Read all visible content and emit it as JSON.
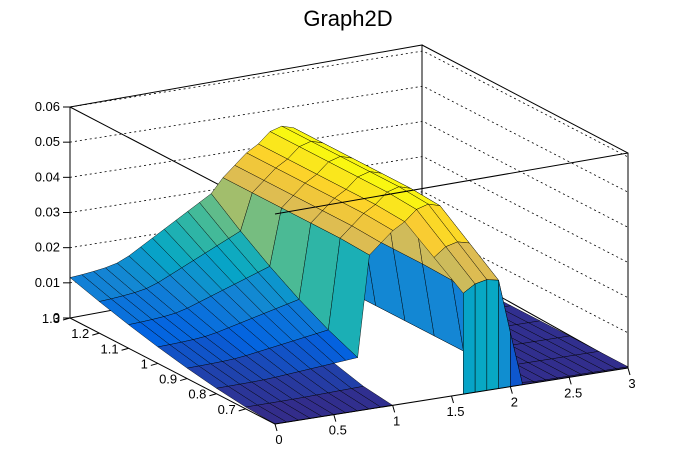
{
  "chart_data": {
    "type": "surface",
    "title": "Graph2D",
    "xlabel": "",
    "ylabel": "",
    "zlabel": "",
    "x_range": [
      0,
      3
    ],
    "y_range": [
      0.6,
      1.3
    ],
    "z_range": [
      0,
      0.06
    ],
    "x_ticks": [
      0,
      0.5,
      1,
      1.5,
      2,
      2.5,
      3
    ],
    "x_tick_labels": [
      "0",
      "0.5",
      "1",
      "1.5",
      "2",
      "2.5",
      "3"
    ],
    "y_ticks": [
      0.7,
      0.8,
      0.9,
      1.0,
      1.1,
      1.2,
      1.3
    ],
    "y_tick_labels": [
      "0.7",
      "0.8",
      "0.9",
      "1",
      "1.1",
      "1.2",
      "1.3"
    ],
    "z_ticks": [
      0,
      0.01,
      0.02,
      0.03,
      0.04,
      0.05,
      0.06
    ],
    "z_tick_labels": [
      "0",
      "0.01",
      "0.02",
      "0.03",
      "0.04",
      "0.05",
      "0.06"
    ],
    "z_grid": true,
    "palette": [
      "#352a87",
      "#0363e1",
      "#1485d4",
      "#06a7c6",
      "#38b99e",
      "#92bf73",
      "#d9ba56",
      "#fcce2e",
      "#f9fb0e"
    ],
    "grid_x": [
      0,
      0.1,
      0.2,
      0.3,
      0.4,
      0.5,
      0.6,
      0.7,
      0.8,
      0.9,
      1.0,
      1.1,
      1.2,
      1.3,
      1.4,
      1.5,
      1.6,
      1.7,
      1.8,
      1.9,
      2.0,
      2.1,
      2.2,
      2.3,
      2.4,
      2.5,
      2.6,
      2.7,
      2.8,
      2.9,
      3.0
    ],
    "grid_y": [
      0.6,
      0.7,
      0.8,
      0.9,
      1.0,
      1.1,
      1.2,
      1.3
    ],
    "z_edge_y_max": [
      0.0115,
      0.0118,
      0.0122,
      0.0127,
      0.0135,
      0.015,
      0.017,
      0.019,
      0.021,
      0.023,
      0.025,
      0.027,
      0.029,
      0.031,
      0.034,
      0.037,
      0.04,
      0.042,
      0.043,
      0.042,
      0.02,
      0.001,
      0.0005,
      0.0005,
      0.0005,
      0.0005,
      0.0005,
      0.0005,
      0.0005,
      0.0005,
      0.0005
    ],
    "z_ridge_peak": [
      0.0,
      0.0,
      0.0,
      0.0,
      0.0,
      0.0,
      0.0,
      0.0,
      0.0,
      0.0,
      0.0,
      0.0,
      0.0,
      0.033,
      0.036,
      0.039,
      0.041,
      0.044,
      0.045,
      0.044,
      0.022,
      0.001,
      0.0005,
      0.0005,
      0.0005,
      0.0005,
      0.0005,
      0.0005,
      0.0005,
      0.0005,
      0.0005
    ]
  }
}
